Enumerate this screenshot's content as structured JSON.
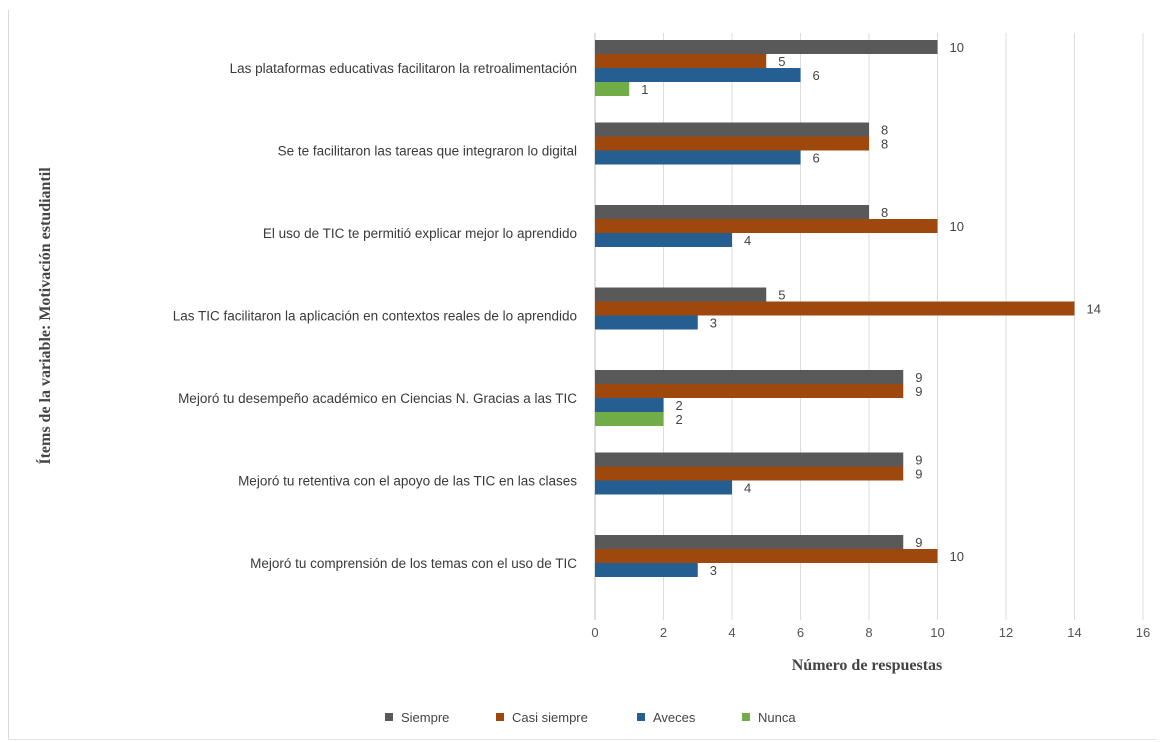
{
  "chart_data": {
    "type": "bar",
    "orientation": "horizontal",
    "categories": [
      "Las plataformas educativas facilitaron la retroalimentación",
      "Se te facilitaron las tareas que integraron lo digital",
      "El uso de TIC te permitió explicar mejor lo aprendido",
      "Las TIC facilitaron la aplicación en contextos reales de lo aprendido",
      "Mejoró tu desempeño académico en Ciencias N. Gracias a las TIC",
      "Mejoró tu retentiva con el apoyo de las TIC en las clases",
      "Mejoró tu comprensión de los temas con el uso de TIC"
    ],
    "series": [
      {
        "name": "Siempre",
        "color": "#595959",
        "values": [
          10,
          8,
          8,
          5,
          9,
          9,
          9
        ]
      },
      {
        "name": "Casi siempre",
        "color": "#9e480e",
        "values": [
          5,
          8,
          10,
          14,
          9,
          9,
          10
        ]
      },
      {
        "name": "Aveces",
        "color": "#255e91",
        "values": [
          6,
          6,
          4,
          3,
          2,
          4,
          3
        ]
      },
      {
        "name": "Nunca",
        "color": "#70ad47",
        "values": [
          1,
          0,
          0,
          0,
          2,
          0,
          0
        ]
      }
    ],
    "xlabel": "Número de respuestas",
    "ylabel": "Ítems de la variable:  Motivación estudiantil",
    "xlim": [
      0,
      16
    ],
    "xticks": [
      "0",
      "2",
      "4",
      "6",
      "8",
      "10",
      "12",
      "14",
      "16"
    ],
    "grid": "vertical",
    "legend": "bottom",
    "legend_labels": [
      "Siempre",
      "Casi siempre",
      "Aveces",
      "Nunca"
    ],
    "data_labels": true
  }
}
